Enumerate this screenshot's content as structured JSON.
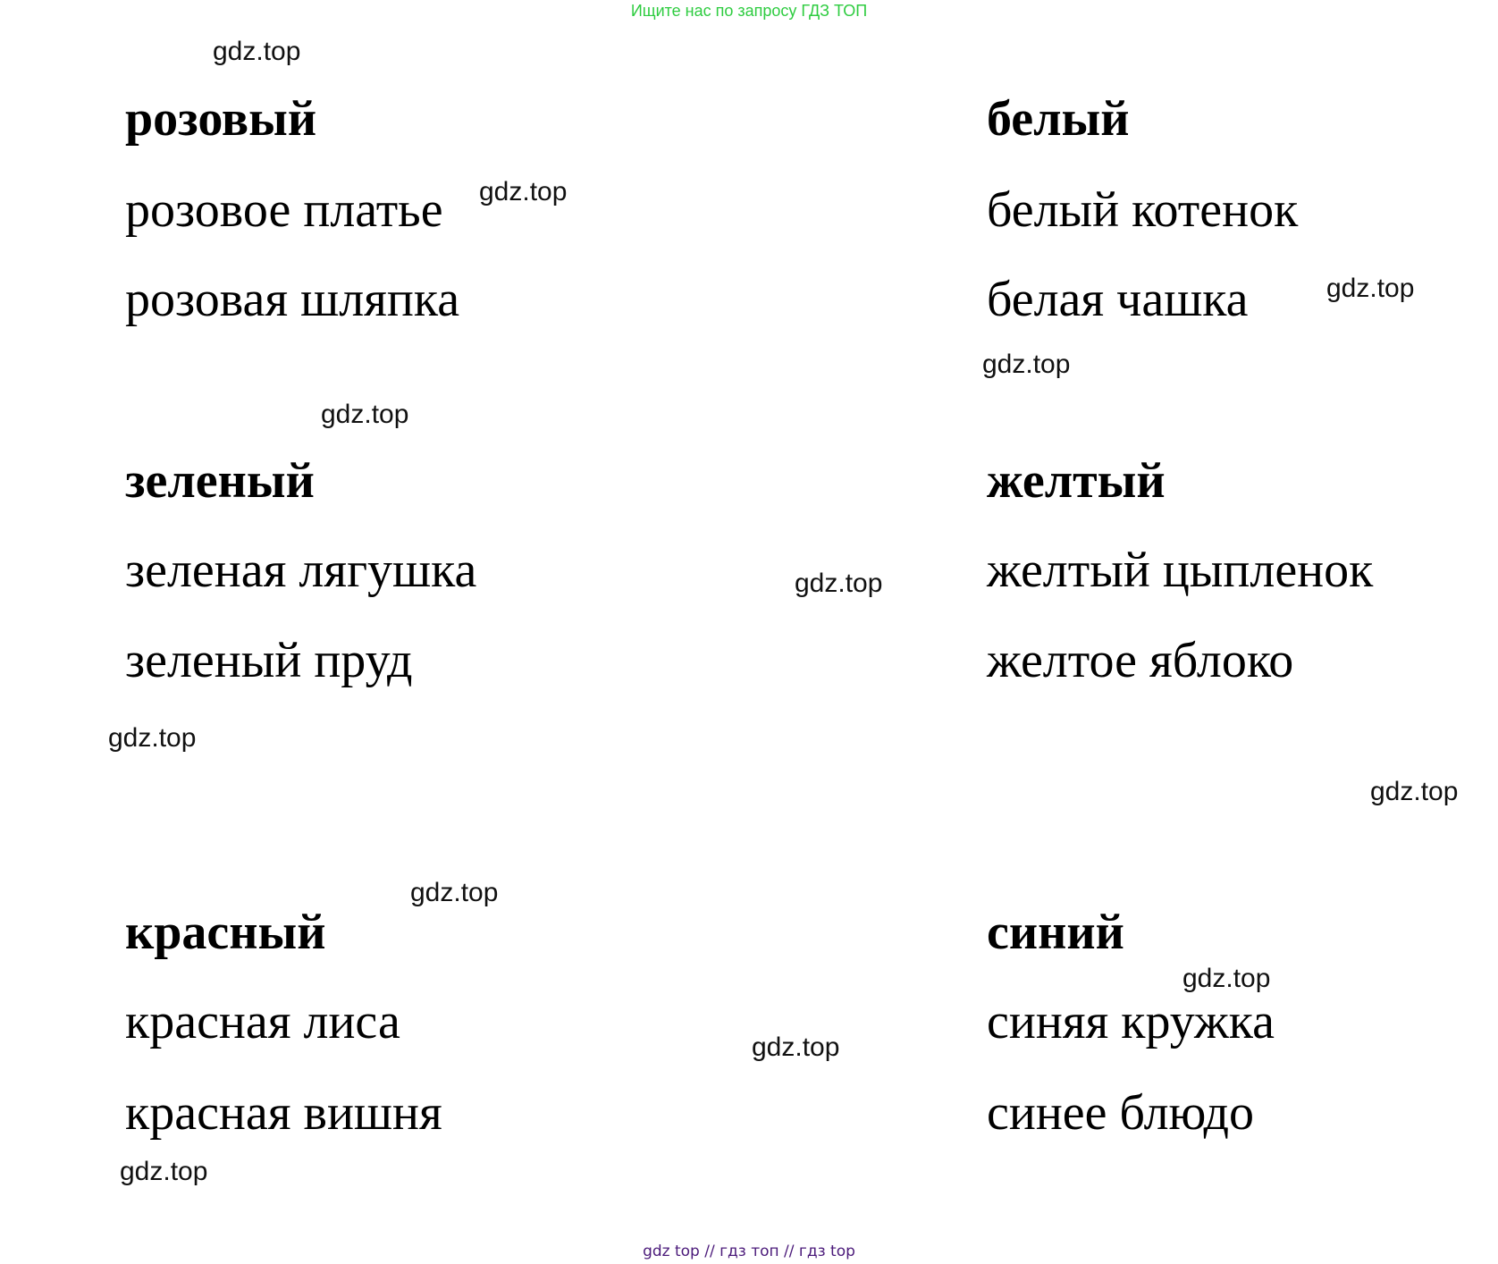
{
  "header": "Ищите нас по запросу ГДЗ ТОП",
  "footer": "gdz top  //  гдз топ  //  гдз top",
  "watermark": "gdz.top",
  "groups": [
    {
      "title": "розовый",
      "phrases": [
        "розовое платье",
        "розовая шляпка"
      ]
    },
    {
      "title": "белый",
      "phrases": [
        "белый котенок",
        "белая чашка"
      ]
    },
    {
      "title": "зеленый",
      "phrases": [
        "зеленая лягушка",
        "зеленый пруд"
      ]
    },
    {
      "title": "желтый",
      "phrases": [
        "желтый цыпленок",
        "желтое яблоко"
      ]
    },
    {
      "title": "красный",
      "phrases": [
        "красная лиса",
        "красная вишня"
      ]
    },
    {
      "title": "синий",
      "phrases": [
        "синяя кружка",
        "синее блюдо"
      ]
    }
  ]
}
